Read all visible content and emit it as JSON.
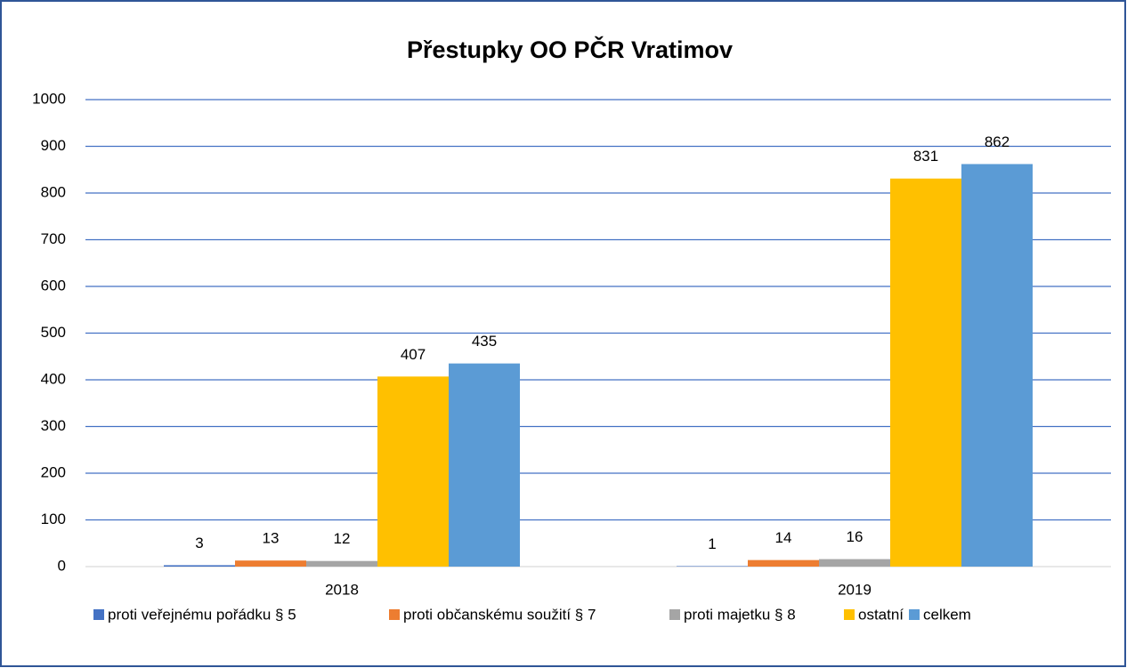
{
  "chart_data": {
    "type": "bar",
    "title": "Přestupky  OO PČR Vratimov",
    "categories": [
      "2018",
      "2019"
    ],
    "series": [
      {
        "name": "proti veřejnému pořádku § 5",
        "color": "#4472c4",
        "values": [
          3,
          1
        ]
      },
      {
        "name": "proti občanskému soužití § 7",
        "color": "#ed7d31",
        "values": [
          13,
          14
        ]
      },
      {
        "name": "proti majetku § 8",
        "color": "#a5a5a5",
        "values": [
          12,
          16
        ]
      },
      {
        "name": "ostatní",
        "color": "#ffc000",
        "values": [
          407,
          831
        ]
      },
      {
        "name": "celkem",
        "color": "#5b9bd5",
        "values": [
          435,
          862
        ]
      }
    ],
    "ylim": [
      0,
      1000
    ],
    "yticks": [
      0,
      100,
      200,
      300,
      400,
      500,
      600,
      700,
      800,
      900,
      1000
    ],
    "grid": true,
    "legend": "bottom"
  }
}
